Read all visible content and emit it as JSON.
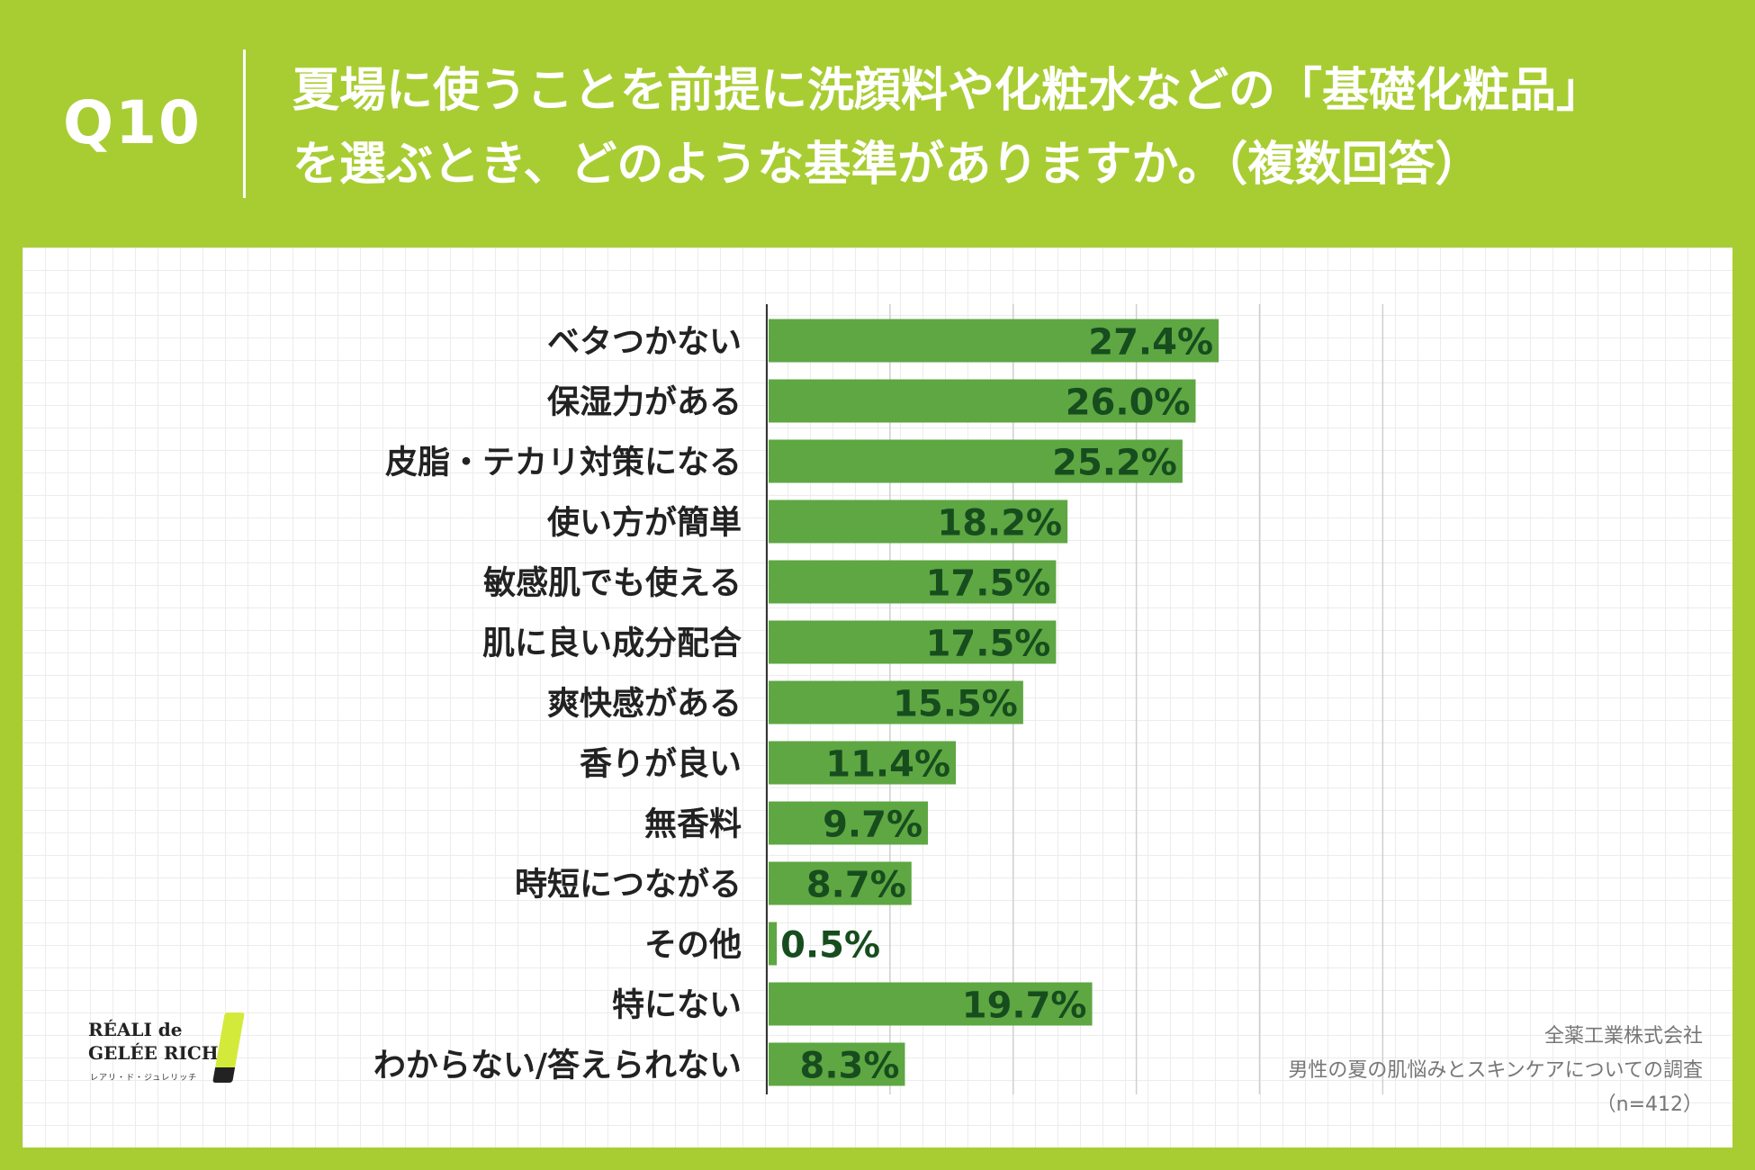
{
  "question_number": "Q10",
  "title_lines": [
    "夏場に使うことを前提に洗顔料や化粧水などの「基礎化粧品」",
    "を選ぶとき、どのような基準がありますか。（複数回答）"
  ],
  "source": {
    "company": "全薬工業株式会社",
    "survey": "男性の夏の肌悩みとスキンケアについての調査",
    "sample": "（n=412）"
  },
  "logo": {
    "line1": "RÉALI de",
    "line2": "GELÉE RICH®",
    "sub": "レアリ・ド・ジュレリッチ"
  },
  "colors": {
    "background": "#a8cd32",
    "bar": "#5ea743",
    "value_label": "#174d1e",
    "category_label": "#222222",
    "gridline": "#cfcfcf",
    "axis": "#333333"
  },
  "chart_data": {
    "type": "bar",
    "orientation": "horizontal",
    "categories": [
      "ベタつかない",
      "保湿力がある",
      "皮脂・テカリ対策になる",
      "使い方が簡単",
      "敏感肌でも使える",
      "肌に良い成分配合",
      "爽快感がある",
      "香りが良い",
      "無香料",
      "時短につながる",
      "その他",
      "特にない",
      "わからない/答えられない"
    ],
    "values": [
      27.4,
      26.0,
      25.2,
      18.2,
      17.5,
      17.5,
      15.5,
      11.4,
      9.7,
      8.7,
      0.5,
      19.7,
      8.3
    ],
    "labels": [
      "27.4%",
      "26.0%",
      "25.2%",
      "18.2%",
      "17.5%",
      "17.5%",
      "15.5%",
      "11.4%",
      "9.7%",
      "8.7%",
      "0.5%",
      "19.7%",
      "8.3%"
    ],
    "unit": "%",
    "xlim": [
      0,
      40
    ],
    "gridlines": [
      7.5,
      15,
      22.5,
      30,
      37.5
    ],
    "title": "",
    "xlabel": "",
    "ylabel": ""
  }
}
